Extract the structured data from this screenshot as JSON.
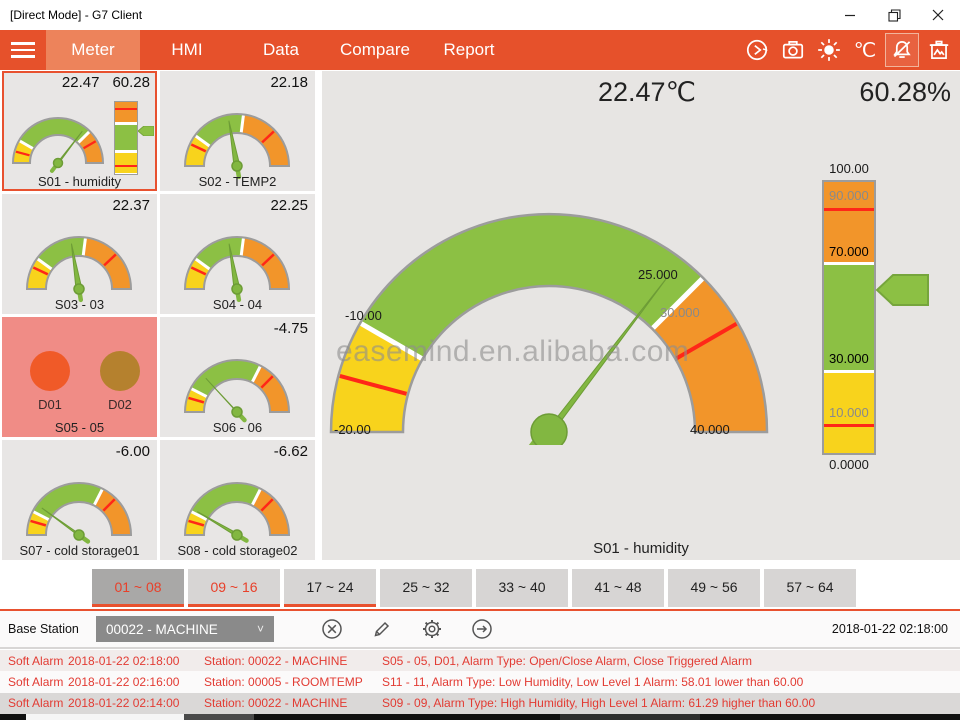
{
  "window": {
    "title": "[Direct Mode] - G7 Client"
  },
  "nav": {
    "items": [
      {
        "label": "Meter",
        "active": true
      },
      {
        "label": "HMI",
        "active": false
      },
      {
        "label": "Data",
        "active": false
      },
      {
        "label": "Compare",
        "active": false
      },
      {
        "label": "Report",
        "active": false
      }
    ],
    "icons": [
      "sync-icon",
      "camera-icon",
      "brightness-icon",
      "celsius-icon",
      "alarm-mute-icon",
      "clear-image-icon"
    ],
    "celsius_label": "℃"
  },
  "tiles": [
    {
      "label": "S01 - humidity",
      "type": "gauge_bar",
      "values": [
        "22.47",
        "60.28"
      ],
      "selected": true,
      "gauge": {
        "min": -20,
        "max": 40,
        "value": 22.47,
        "green": [
          -10,
          25
        ],
        "reds": [
          -15,
          30
        ]
      },
      "bar": {
        "min": 0,
        "max": 100,
        "value": 60.28,
        "green": [
          30,
          70
        ],
        "reds": [
          10,
          90
        ]
      }
    },
    {
      "label": "S02 - TEMP2",
      "type": "gauge",
      "values": [
        "22.18"
      ],
      "gauge": {
        "min": 0,
        "max": 50,
        "value": 22.18,
        "green": [
          10,
          27
        ],
        "reds": [
          7,
          38
        ]
      }
    },
    {
      "label": "S03 - 03",
      "type": "gauge",
      "values": [
        "22.37"
      ],
      "gauge": {
        "min": 0,
        "max": 50,
        "value": 22.37,
        "green": [
          10,
          27
        ],
        "reds": [
          7,
          38
        ]
      }
    },
    {
      "label": "S04 - 04",
      "type": "gauge",
      "values": [
        "22.25"
      ],
      "gauge": {
        "min": 0,
        "max": 50,
        "value": 22.25,
        "green": [
          10,
          27
        ],
        "reds": [
          7,
          38
        ]
      }
    },
    {
      "label": "S05 - 05",
      "type": "digital",
      "alarm": true,
      "channels": [
        {
          "label": "D01",
          "color": "#F05A28"
        },
        {
          "label": "D02",
          "color": "#B5812E"
        }
      ]
    },
    {
      "label": "S06 - 06",
      "type": "gauge",
      "values": [
        "-4.75"
      ],
      "gauge": {
        "min": -10,
        "max": 10,
        "value": -4.75,
        "green": [
          -7,
          3
        ],
        "reds": [
          -8.2,
          5
        ]
      }
    },
    {
      "label": "S07 - cold storage01",
      "type": "gauge",
      "values": [
        "-6.00"
      ],
      "gauge": {
        "min": -10,
        "max": 10,
        "value": -6.0,
        "green": [
          -7,
          3
        ],
        "reds": [
          -8.2,
          5
        ]
      }
    },
    {
      "label": "S08 - cold storage02",
      "type": "gauge",
      "values": [
        "-6.62"
      ],
      "gauge": {
        "min": -10,
        "max": 10,
        "value": -6.62,
        "green": [
          -7,
          3
        ],
        "reds": [
          -8.2,
          5
        ]
      }
    }
  ],
  "main": {
    "temp_display": "22.47℃",
    "humidity_display": "60.28%",
    "selected_label": "S01 - humidity",
    "watermark": "easemind.en.alibaba.com",
    "gauge": {
      "min": -20,
      "max": 40,
      "value": 22.47,
      "green": [
        -10,
        25
      ],
      "reds": [
        -15,
        30
      ],
      "labels": {
        "min": "-20.00",
        "low": "-10.00",
        "high": "25.000",
        "alarm_high": "30.000",
        "max": "40.000"
      }
    },
    "bar": {
      "min": 0,
      "max": 100,
      "value": 60.28,
      "green": [
        30,
        70
      ],
      "reds": [
        10,
        90
      ],
      "labels": {
        "max": "100.00",
        "l90": "90.000",
        "l70": "70.000",
        "l30": "30.000",
        "l10": "10.000",
        "min": "0.0000"
      }
    }
  },
  "range_tabs": [
    {
      "label": "01 ~ 08",
      "active": true,
      "alarm": true,
      "underline": true
    },
    {
      "label": "09 ~ 16",
      "active": false,
      "alarm": true,
      "underline": true
    },
    {
      "label": "17 ~ 24",
      "active": false,
      "alarm": false,
      "underline": true
    },
    {
      "label": "25 ~ 32",
      "active": false,
      "alarm": false,
      "underline": false
    },
    {
      "label": "33 ~ 40",
      "active": false,
      "alarm": false,
      "underline": false
    },
    {
      "label": "41 ~ 48",
      "active": false,
      "alarm": false,
      "underline": false
    },
    {
      "label": "49 ~ 56",
      "active": false,
      "alarm": false,
      "underline": false
    },
    {
      "label": "57 ~ 64",
      "active": false,
      "alarm": false,
      "underline": false
    }
  ],
  "station_bar": {
    "label": "Base Station",
    "selected_station": "00022 - MACHINE",
    "timestamp": "2018-01-22 02:18:00"
  },
  "alarms": [
    {
      "type": "Soft Alarm",
      "time": "2018-01-22 02:18:00",
      "station": "Station: 00022 - MACHINE",
      "message": "S05 - 05, D01, Alarm Type: Open/Close Alarm, Close Triggered Alarm"
    },
    {
      "type": "Soft Alarm",
      "time": "2018-01-22 02:16:00",
      "station": "Station: 00005 - ROOMTEMP",
      "message": "S11 - 11, Alarm Type: Low Humidity, Low Level 1 Alarm: 58.01 lower than 60.00"
    },
    {
      "type": "Soft Alarm",
      "time": "2018-01-22 02:14:00",
      "station": "Station: 00022 - MACHINE",
      "message": "S09 - 09, Alarm Type: High Humidity, High Level 1 Alarm: 61.29 higher than 60.00"
    }
  ],
  "colors": {
    "accent": "#E8512F",
    "nav_orange": "#E6512B",
    "gauge_green": "#8CC044",
    "gauge_yellow": "#F8D31C",
    "gauge_orange": "#F2952A",
    "alarm_line_red": "#FF2718",
    "alarm_text_red": "#E23B33"
  }
}
